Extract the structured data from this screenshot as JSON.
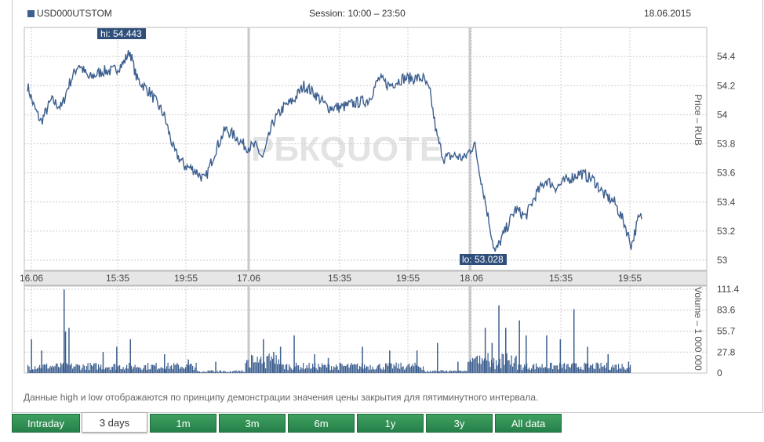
{
  "header": {
    "ticker": "USD000UTSTOM",
    "session": "Session: 10:00 – 23:50",
    "date": "18.06.2015"
  },
  "watermark": "РБКQUOTE",
  "note": "Данные high и low отображаются по принципу демонстрации значения цены закрытия для пятиминутного интервала.",
  "tabs": [
    "Intraday",
    "3 days",
    "1m",
    "3m",
    "6m",
    "1y",
    "3y",
    "All data"
  ],
  "active_tab": "3 days",
  "colors": {
    "line": "#3d5f8f",
    "grid": "#cccccc",
    "separator": "#c8c8c8",
    "tab": "#2e8b4e"
  },
  "chart_data": [
    {
      "type": "line",
      "ylabel": "Price – RUB",
      "ylim": [
        52.93,
        54.6
      ],
      "yticks": [
        53,
        53.2,
        53.4,
        53.6,
        53.8,
        54,
        54.2,
        54.4
      ],
      "ytick_labels": [
        "53",
        "53.2",
        "53.4",
        "53.6",
        "53.8",
        "54",
        "54.2",
        "54.4"
      ],
      "xtick_labels": [
        "16.06",
        "15:35",
        "19:55",
        "17.06",
        "15:35",
        "19:55",
        "18.06",
        "15:35",
        "19:55"
      ],
      "hi_label": "hi: 54.443",
      "lo_label": "lo: 53.028",
      "hi": 54.443,
      "lo": 53.028,
      "keypoints": [
        [
          0.0,
          54.2
        ],
        [
          0.01,
          54.05
        ],
        [
          0.02,
          53.95
        ],
        [
          0.035,
          54.1
        ],
        [
          0.05,
          54.05
        ],
        [
          0.06,
          54.2
        ],
        [
          0.075,
          54.35
        ],
        [
          0.09,
          54.25
        ],
        [
          0.11,
          54.3
        ],
        [
          0.125,
          54.3
        ],
        [
          0.14,
          54.35
        ],
        [
          0.15,
          54.44
        ],
        [
          0.16,
          54.25
        ],
        [
          0.18,
          54.15
        ],
        [
          0.2,
          54.0
        ],
        [
          0.215,
          53.75
        ],
        [
          0.23,
          53.65
        ],
        [
          0.245,
          53.62
        ],
        [
          0.26,
          53.55
        ],
        [
          0.275,
          53.75
        ],
        [
          0.29,
          53.9
        ],
        [
          0.305,
          53.85
        ],
        [
          0.32,
          53.78
        ],
        [
          0.335,
          53.78
        ],
        [
          0.345,
          53.7
        ],
        [
          0.36,
          53.95
        ],
        [
          0.375,
          54.05
        ],
        [
          0.39,
          54.1
        ],
        [
          0.405,
          54.2
        ],
        [
          0.42,
          54.15
        ],
        [
          0.44,
          54.05
        ],
        [
          0.46,
          54.05
        ],
        [
          0.48,
          54.08
        ],
        [
          0.5,
          54.1
        ],
        [
          0.515,
          54.25
        ],
        [
          0.53,
          54.2
        ],
        [
          0.55,
          54.25
        ],
        [
          0.57,
          54.25
        ],
        [
          0.58,
          54.25
        ],
        [
          0.59,
          54.15
        ],
        [
          0.6,
          53.85
        ],
        [
          0.61,
          53.7
        ],
        [
          0.625,
          53.72
        ],
        [
          0.64,
          53.7
        ],
        [
          0.655,
          53.8
        ],
        [
          0.665,
          53.55
        ],
        [
          0.675,
          53.3
        ],
        [
          0.685,
          53.05
        ],
        [
          0.7,
          53.2
        ],
        [
          0.715,
          53.35
        ],
        [
          0.73,
          53.3
        ],
        [
          0.745,
          53.45
        ],
        [
          0.76,
          53.55
        ],
        [
          0.775,
          53.5
        ],
        [
          0.79,
          53.55
        ],
        [
          0.81,
          53.6
        ],
        [
          0.83,
          53.55
        ],
        [
          0.845,
          53.45
        ],
        [
          0.86,
          53.4
        ],
        [
          0.875,
          53.25
        ],
        [
          0.885,
          53.1
        ],
        [
          0.895,
          53.28
        ],
        [
          0.9,
          53.3
        ]
      ]
    },
    {
      "type": "bar",
      "ylabel": "Volume – 1 000 000",
      "ylim": [
        0,
        111.4
      ],
      "yticks": [
        0,
        27.8,
        55.7,
        83.6,
        111.4
      ],
      "ytick_labels": [
        "0",
        "27.8",
        "55.7",
        "83.6",
        "111.4"
      ],
      "xtick_labels": [
        "16.06",
        "15:35",
        "19:55",
        "17.06",
        "15:35",
        "19:55",
        "18.06",
        "15:35",
        "19:55"
      ],
      "spikes": [
        [
          0.005,
          45
        ],
        [
          0.02,
          30
        ],
        [
          0.055,
          55
        ],
        [
          0.06,
          60
        ],
        [
          0.11,
          28
        ],
        [
          0.13,
          35
        ],
        [
          0.15,
          45
        ],
        [
          0.2,
          25
        ],
        [
          0.235,
          18
        ],
        [
          0.275,
          15
        ],
        [
          0.345,
          45
        ],
        [
          0.36,
          28
        ],
        [
          0.37,
          35
        ],
        [
          0.39,
          50
        ],
        [
          0.42,
          25
        ],
        [
          0.44,
          20
        ],
        [
          0.49,
          35
        ],
        [
          0.53,
          30
        ],
        [
          0.57,
          30
        ],
        [
          0.6,
          40
        ],
        [
          0.63,
          15
        ],
        [
          0.67,
          60
        ],
        [
          0.68,
          40
        ],
        [
          0.69,
          90
        ],
        [
          0.7,
          60
        ],
        [
          0.72,
          70
        ],
        [
          0.73,
          50
        ],
        [
          0.76,
          50
        ],
        [
          0.78,
          45
        ],
        [
          0.8,
          85
        ],
        [
          0.82,
          35
        ],
        [
          0.85,
          25
        ],
        [
          0.88,
          15
        ]
      ],
      "max_spike": [
        0.062,
        111
      ]
    }
  ]
}
